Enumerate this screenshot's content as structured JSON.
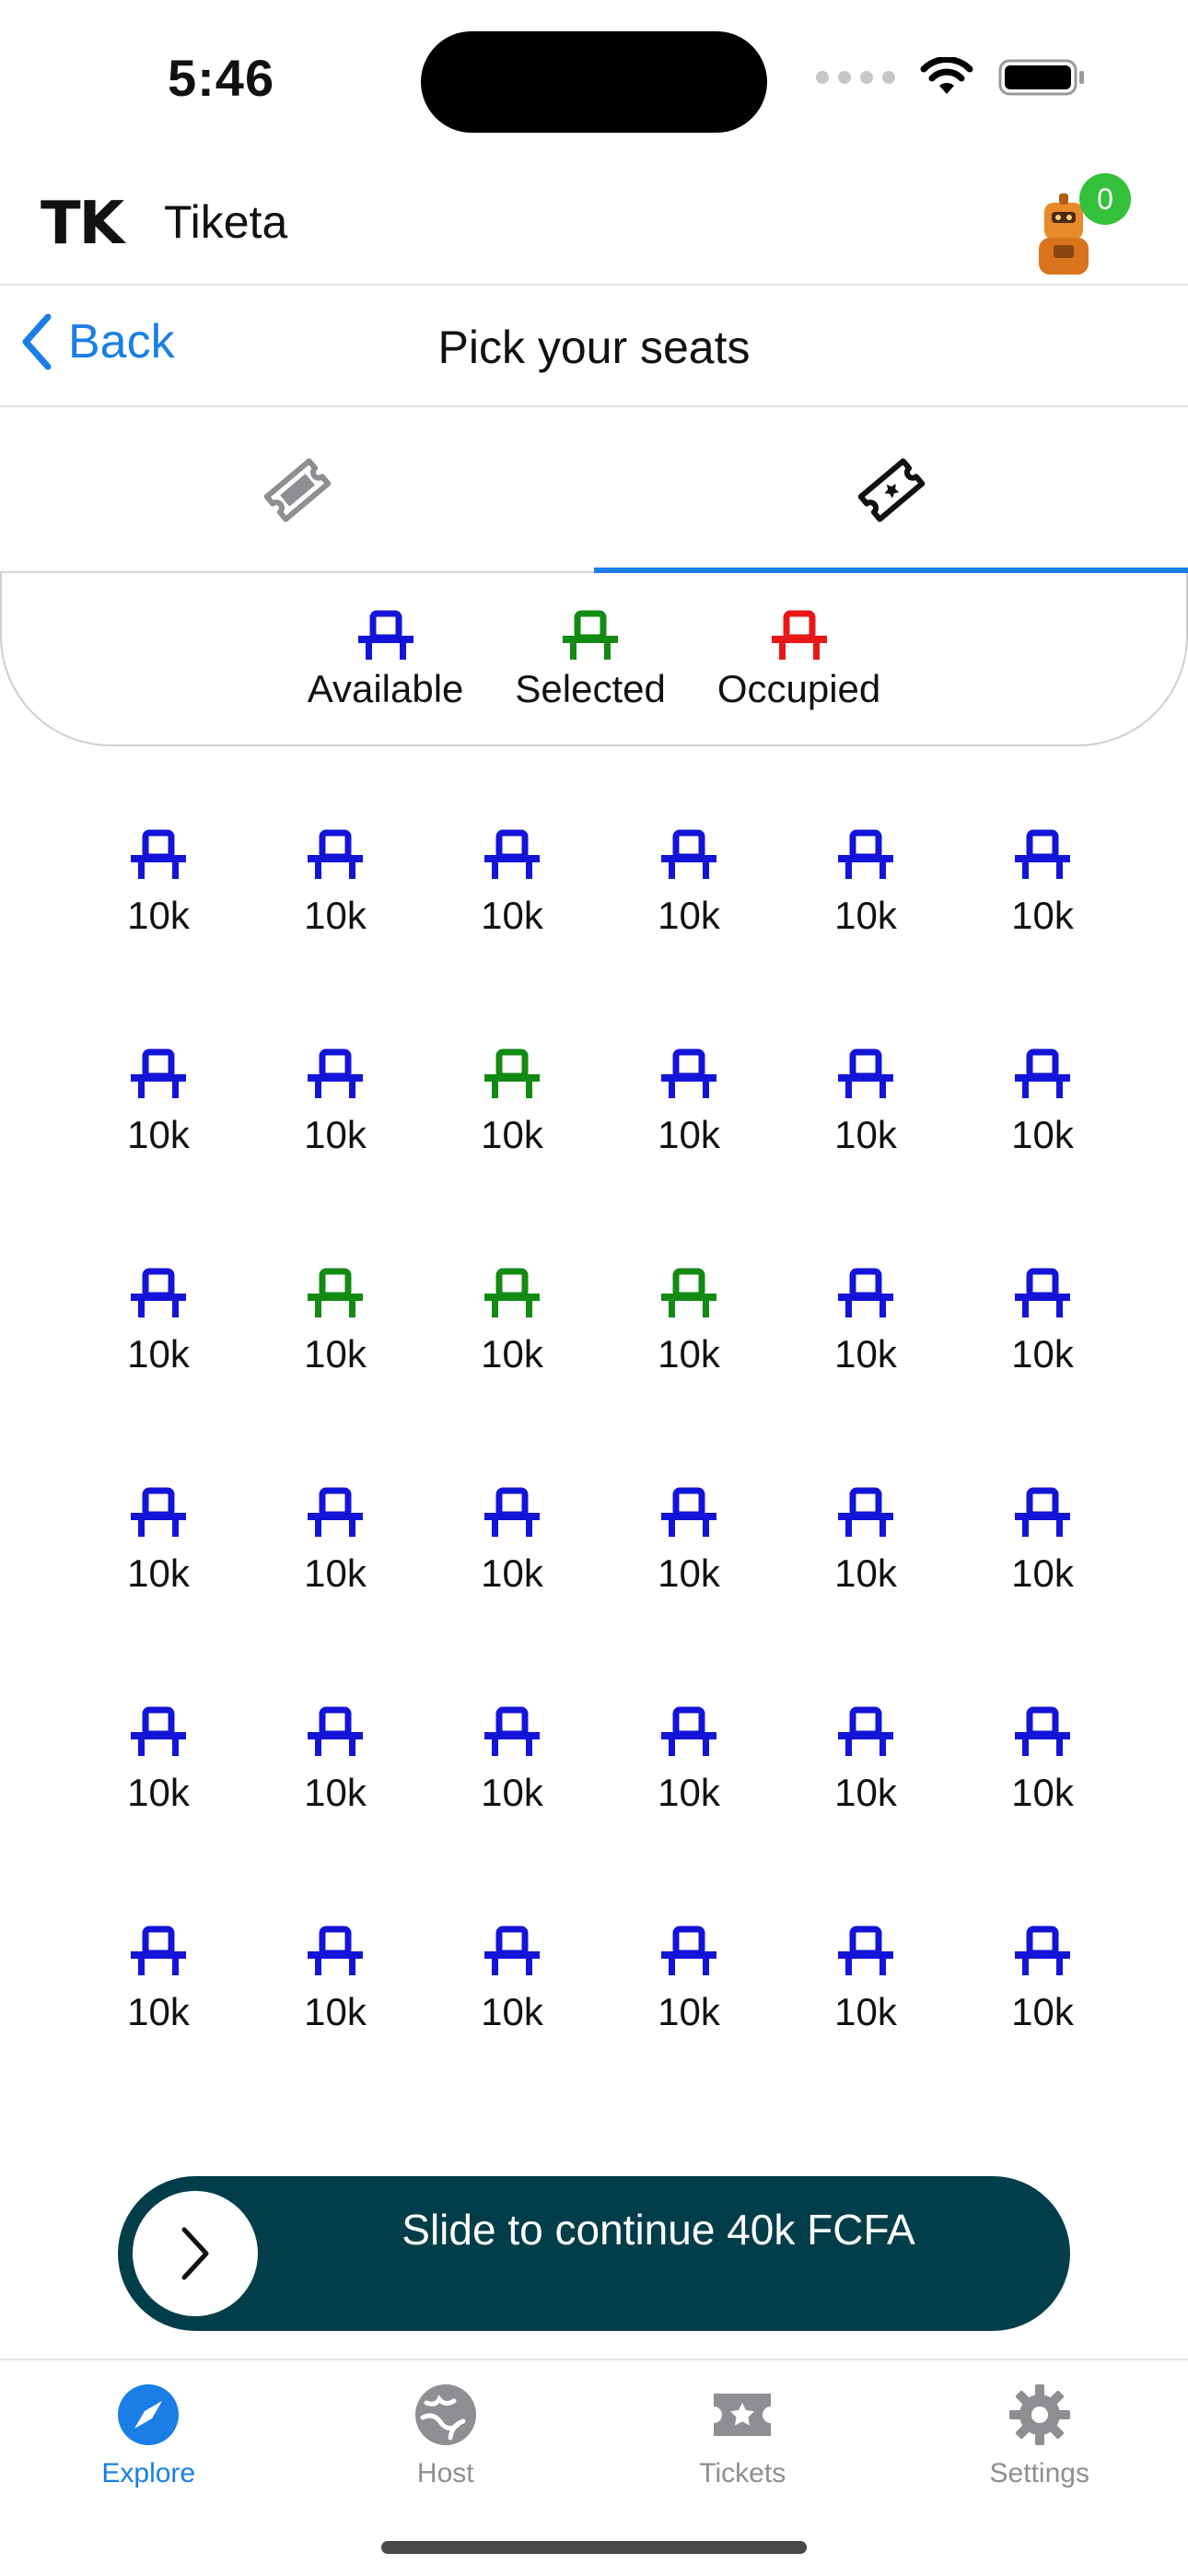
{
  "status_bar": {
    "time": "5:46"
  },
  "header": {
    "logo": "TK",
    "app_name": "Tiketa",
    "cart_count": "0"
  },
  "nav": {
    "back_label": "Back",
    "title": "Pick your seats"
  },
  "legend": {
    "available": "Available",
    "selected": "Selected",
    "occupied": "Occupied"
  },
  "colors": {
    "available": "#1414d8",
    "selected": "#138a13",
    "occupied": "#e81818",
    "accent": "#1a7ee6",
    "slide_bg": "#023e49"
  },
  "seats": [
    [
      "available",
      "available",
      "available",
      "available",
      "available",
      "available"
    ],
    [
      "available",
      "available",
      "selected",
      "available",
      "available",
      "available"
    ],
    [
      "available",
      "selected",
      "selected",
      "selected",
      "available",
      "available"
    ],
    [
      "available",
      "available",
      "available",
      "available",
      "available",
      "available"
    ],
    [
      "available",
      "available",
      "available",
      "available",
      "available",
      "available"
    ],
    [
      "available",
      "available",
      "available",
      "available",
      "available",
      "available"
    ]
  ],
  "seat_price": "10k",
  "slide": {
    "label": "Slide to continue 40k FCFA"
  },
  "tab_bar": {
    "items": [
      {
        "label": "Explore",
        "icon": "compass-icon"
      },
      {
        "label": "Host",
        "icon": "globe-icon"
      },
      {
        "label": "Tickets",
        "icon": "ticket-star-icon"
      },
      {
        "label": "Settings",
        "icon": "gear-icon"
      }
    ],
    "active_index": 0
  }
}
